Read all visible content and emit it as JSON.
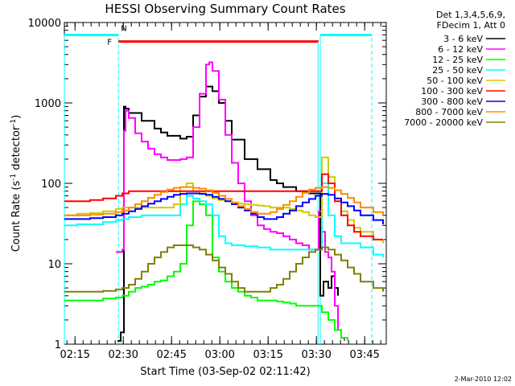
{
  "chart_data": {
    "type": "line",
    "title": "HESSI Observing Summary Count Rates",
    "xlabel": "Start Time (03-Sep-02 02:11:42)",
    "ylabel_main": "Count Rate (s",
    "ylabel_sup1": "-1",
    "ylabel_mid": " detector",
    "ylabel_sup2": "-1",
    "ylabel_end": ")",
    "yscale": "log",
    "ylim": [
      1,
      10000
    ],
    "xlim_minutes": [
      0,
      100
    ],
    "x_ticks": [
      {
        "label": "02:15",
        "m": 3.3
      },
      {
        "label": "02:30",
        "m": 18.3
      },
      {
        "label": "02:45",
        "m": 33.3
      },
      {
        "label": "03:00",
        "m": 48.3
      },
      {
        "label": "03:15",
        "m": 63.3
      },
      {
        "label": "03:30",
        "m": 78.3
      },
      {
        "label": "03:45",
        "m": 93.3
      }
    ],
    "y_ticks": [
      {
        "label": "1",
        "v": 1
      },
      {
        "label": "10",
        "v": 10
      },
      {
        "label": "100",
        "v": 100
      },
      {
        "label": "1000",
        "v": 1000
      },
      {
        "label": "10000",
        "v": 10000
      }
    ],
    "legend_header": [
      "Det 1,3,4,5,6,9,",
      "FDecim 1, Att 0"
    ],
    "legend_position": "right",
    "series": [
      {
        "name": "3 - 6 keV",
        "color": "#000000",
        "x": [
          16.5,
          17.5,
          18.5,
          19,
          20,
          24,
          28,
          30,
          32,
          36,
          38,
          40,
          42,
          44,
          46,
          48,
          50,
          52,
          56,
          60,
          64,
          66,
          68,
          72,
          76,
          78,
          79.5,
          80.5,
          82,
          83,
          84,
          85
        ],
        "y": [
          1.1,
          1.4,
          900,
          850,
          750,
          600,
          480,
          430,
          390,
          360,
          380,
          700,
          1200,
          1600,
          1400,
          1000,
          600,
          350,
          200,
          150,
          110,
          100,
          90,
          80,
          75,
          75,
          4,
          6,
          5,
          7,
          5,
          4
        ]
      },
      {
        "name": "6 - 12 keV",
        "color": "#ff00ff",
        "x": [
          16,
          17,
          18,
          18.5,
          19,
          20,
          22,
          24,
          26,
          28,
          30,
          32,
          36,
          38,
          40,
          42,
          44,
          45,
          46,
          48,
          50,
          52,
          54,
          56,
          58,
          60,
          62,
          64,
          66,
          68,
          70,
          72,
          74,
          76,
          78,
          79,
          80,
          81,
          82,
          83,
          84,
          85,
          86,
          87
        ],
        "y": [
          14,
          14,
          15,
          450,
          800,
          650,
          420,
          330,
          270,
          230,
          210,
          195,
          200,
          210,
          500,
          1300,
          3000,
          3200,
          2500,
          1100,
          400,
          180,
          100,
          60,
          40,
          30,
          27,
          25,
          24,
          22,
          20,
          18,
          17,
          15,
          15,
          45,
          25,
          14,
          12,
          8,
          3,
          1.5,
          1.2,
          1.1
        ]
      },
      {
        "name": "12 - 25 keV",
        "color": "#00ff00",
        "x": [
          0,
          4,
          8,
          12,
          16,
          18,
          20,
          22,
          24,
          26,
          28,
          30,
          32,
          34,
          36,
          38,
          40,
          42,
          44,
          46,
          48,
          50,
          52,
          54,
          56,
          58,
          60,
          62,
          64,
          66,
          68,
          70,
          72,
          74,
          76,
          78,
          80,
          82,
          84,
          86,
          88
        ],
        "y": [
          3.5,
          3.5,
          3.5,
          3.7,
          3.8,
          4,
          4.5,
          5,
          5.2,
          5.5,
          6,
          6.2,
          7,
          8,
          10,
          30,
          60,
          55,
          40,
          12,
          8,
          6,
          5,
          4.5,
          4,
          3.8,
          3.5,
          3.5,
          3.5,
          3.4,
          3.3,
          3.2,
          3,
          3,
          3,
          3,
          2.5,
          2,
          1.5,
          1.2,
          1.1
        ]
      },
      {
        "name": "25 - 50 keV",
        "color": "#00ffff",
        "x": [
          0,
          4,
          8,
          12,
          16,
          18,
          20,
          22,
          24,
          26,
          28,
          30,
          32,
          34,
          36,
          38,
          40,
          42,
          44,
          46,
          48,
          50,
          52,
          54,
          56,
          58,
          60,
          62,
          64,
          66,
          68,
          70,
          72,
          74,
          76,
          78,
          80,
          82,
          84,
          86,
          88,
          90,
          92,
          96,
          99
        ],
        "y": [
          30,
          31,
          31,
          33,
          35,
          36,
          38,
          38,
          40,
          40,
          40,
          40,
          40,
          40,
          55,
          70,
          65,
          60,
          55,
          40,
          22,
          18,
          17,
          17,
          16.5,
          16.5,
          16,
          16,
          15,
          15,
          15,
          15,
          15,
          15,
          15,
          15,
          100,
          40,
          22,
          18,
          18,
          18,
          16,
          13,
          12
        ]
      },
      {
        "name": "50 - 100 keV",
        "color": "#cccc00",
        "x": [
          0,
          4,
          8,
          12,
          16,
          18,
          20,
          22,
          24,
          26,
          28,
          30,
          32,
          34,
          36,
          38,
          40,
          42,
          44,
          46,
          48,
          50,
          52,
          54,
          56,
          58,
          60,
          62,
          64,
          66,
          68,
          70,
          72,
          74,
          76,
          78,
          80,
          82,
          84,
          86,
          88,
          90,
          92,
          96,
          99
        ],
        "y": [
          40,
          42,
          43,
          45,
          48,
          50,
          50,
          50,
          50,
          50,
          50,
          50,
          50,
          55,
          90,
          100,
          80,
          75,
          70,
          65,
          62,
          60,
          58,
          56,
          55,
          54,
          53,
          52,
          50,
          50,
          50,
          48,
          46,
          44,
          40,
          38,
          210,
          120,
          60,
          45,
          35,
          28,
          25,
          20,
          18
        ]
      },
      {
        "name": "100 - 300 keV",
        "color": "#ff0000",
        "x": [
          0,
          4,
          8,
          12,
          16,
          18,
          20,
          22,
          24,
          26,
          28,
          30,
          32,
          34,
          36,
          38,
          40,
          42,
          44,
          46,
          48,
          50,
          52,
          54,
          56,
          58,
          60,
          62,
          64,
          66,
          68,
          70,
          72,
          74,
          76,
          78,
          80,
          82,
          84,
          86,
          88,
          90,
          92,
          96,
          99
        ],
        "y": [
          60,
          60,
          62,
          65,
          70,
          75,
          80,
          80,
          80,
          80,
          80,
          80,
          80,
          80,
          80,
          80,
          80,
          80,
          80,
          80,
          80,
          80,
          80,
          80,
          80,
          80,
          80,
          80,
          80,
          80,
          80,
          80,
          80,
          80,
          80,
          80,
          130,
          100,
          60,
          40,
          30,
          25,
          22,
          20,
          20
        ]
      },
      {
        "name": "300 - 800 keV",
        "color": "#0000ff",
        "x": [
          0,
          4,
          8,
          12,
          16,
          18,
          20,
          22,
          24,
          26,
          28,
          30,
          32,
          34,
          36,
          38,
          40,
          42,
          44,
          46,
          48,
          50,
          52,
          54,
          56,
          58,
          60,
          62,
          64,
          66,
          68,
          70,
          72,
          74,
          76,
          78,
          80,
          82,
          84,
          86,
          88,
          90,
          92,
          96,
          99
        ],
        "y": [
          36,
          36,
          37,
          38,
          40,
          42,
          45,
          48,
          52,
          56,
          60,
          64,
          68,
          72,
          74,
          75,
          75,
          74,
          72,
          68,
          64,
          60,
          55,
          50,
          46,
          42,
          38,
          36,
          36,
          38,
          42,
          46,
          52,
          58,
          64,
          70,
          74,
          72,
          65,
          58,
          52,
          46,
          40,
          35,
          31
        ]
      },
      {
        "name": "800 - 7000 keV",
        "color": "#ff8c00",
        "x": [
          0,
          4,
          8,
          12,
          16,
          18,
          20,
          22,
          24,
          26,
          28,
          30,
          32,
          34,
          36,
          38,
          40,
          42,
          44,
          46,
          48,
          50,
          52,
          54,
          56,
          58,
          60,
          62,
          64,
          66,
          68,
          70,
          72,
          74,
          76,
          78,
          80,
          82,
          84,
          86,
          88,
          90,
          92,
          96,
          99
        ],
        "y": [
          40,
          40,
          41,
          42,
          44,
          46,
          50,
          55,
          60,
          66,
          72,
          78,
          84,
          88,
          90,
          90,
          88,
          86,
          82,
          76,
          70,
          64,
          58,
          52,
          48,
          44,
          42,
          42,
          44,
          48,
          54,
          60,
          68,
          76,
          84,
          88,
          90,
          88,
          82,
          74,
          66,
          58,
          50,
          44,
          40
        ]
      },
      {
        "name": "7000 - 20000 keV",
        "color": "#808000",
        "x": [
          0,
          4,
          8,
          12,
          16,
          18,
          20,
          22,
          24,
          26,
          28,
          30,
          32,
          34,
          36,
          38,
          40,
          42,
          44,
          46,
          48,
          50,
          52,
          54,
          56,
          58,
          60,
          62,
          64,
          66,
          68,
          70,
          72,
          74,
          76,
          78,
          80,
          82,
          84,
          86,
          88,
          90,
          92,
          96,
          99
        ],
        "y": [
          4.5,
          4.5,
          4.5,
          4.6,
          4.8,
          5,
          5.5,
          6.5,
          8,
          10,
          12,
          14,
          16,
          17,
          17,
          17,
          16,
          15,
          13,
          11,
          9,
          7.5,
          6,
          5,
          4.5,
          4.5,
          4.5,
          4.5,
          5,
          5.5,
          6.5,
          8,
          10,
          12,
          14,
          15,
          16,
          15,
          13,
          11,
          9,
          7.5,
          6,
          5,
          4.5
        ]
      }
    ],
    "markers": {
      "attenuator_label": "F",
      "saa_label": "N",
      "line_color_red": "#ff0000",
      "line_color_cyan": "#00ffff"
    },
    "footer_date": "2-Mar-2010 12:02"
  }
}
